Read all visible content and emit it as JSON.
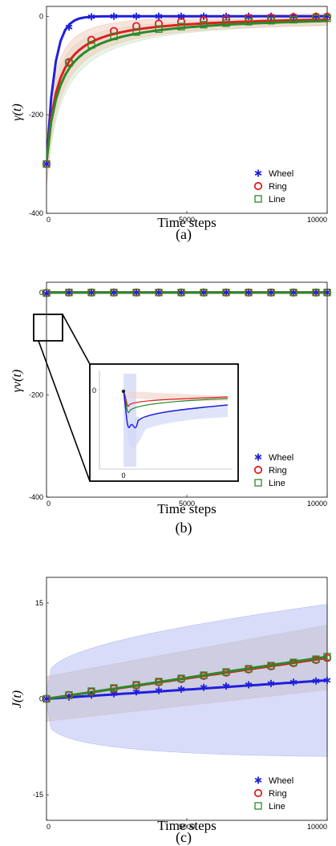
{
  "chart_data": [
    {
      "type": "line",
      "caption": "(a)",
      "ylabel": "γ(t)",
      "xlabel": "Time steps",
      "xlim": [
        0,
        10000
      ],
      "ylim": [
        -400,
        20
      ],
      "xticks": [
        0,
        5000,
        10000
      ],
      "yticks": [
        0,
        -200,
        -400
      ],
      "xtick_labels": [
        "0",
        "5000",
        "10000"
      ],
      "ytick_labels": [
        "0",
        "-200",
        "-400"
      ],
      "legend": "bottom-right",
      "series": [
        {
          "name": "Wheel",
          "marker": "star",
          "color": "#1f1fdc",
          "x": [
            0,
            800,
            1600,
            2400,
            3200,
            4000,
            4800,
            5600,
            6400,
            7200,
            8000,
            8800,
            9600,
            10000
          ],
          "values": [
            -300,
            -22,
            -1,
            0,
            0,
            0,
            0,
            0,
            0,
            0,
            0,
            0,
            0,
            0
          ]
        },
        {
          "name": "Ring",
          "marker": "circle",
          "color": "#e01e1e",
          "x": [
            0,
            800,
            1600,
            2400,
            3200,
            4000,
            4800,
            5600,
            6400,
            7200,
            8000,
            8800,
            9600,
            10000
          ],
          "values": [
            -300,
            -93,
            -48,
            -30,
            -20,
            -15,
            -11,
            -8,
            -6,
            -4,
            -3,
            -2,
            -1,
            -1
          ]
        },
        {
          "name": "Line",
          "marker": "square",
          "color": "#2a8a2a",
          "x": [
            0,
            800,
            1600,
            2400,
            3200,
            4000,
            4800,
            5600,
            6400,
            7200,
            8000,
            8800,
            9600,
            10000
          ],
          "values": [
            -300,
            -95,
            -58,
            -41,
            -32,
            -26,
            -21,
            -17,
            -14,
            -11,
            -9,
            -7,
            -5,
            -4
          ]
        }
      ]
    },
    {
      "type": "line",
      "caption": "(b)",
      "ylabel": "γv(t)",
      "xlabel": "Time steps",
      "xlim": [
        0,
        10000
      ],
      "ylim": [
        -400,
        20
      ],
      "xticks": [
        0,
        5000,
        10000
      ],
      "yticks": [
        0,
        -200,
        -400
      ],
      "xtick_labels": [
        "0",
        "5000",
        "10000"
      ],
      "ytick_labels": [
        "0",
        "-200",
        "-400"
      ],
      "legend": "bottom-right",
      "inset": {
        "zoom_of": "t ≈ 0–600",
        "tick_label_y": "0",
        "tick_label_x": "0"
      },
      "series": [
        {
          "name": "Wheel",
          "marker": "star",
          "color": "#1f1fdc",
          "x": [
            0,
            800,
            1600,
            2400,
            3200,
            4000,
            4800,
            5600,
            6400,
            7200,
            8000,
            8800,
            9600,
            10000
          ],
          "values": [
            -2,
            0,
            0,
            0,
            0,
            0,
            0,
            0,
            0,
            0,
            0,
            0,
            0,
            0
          ]
        },
        {
          "name": "Ring",
          "marker": "circle",
          "color": "#e01e1e",
          "x": [
            0,
            800,
            1600,
            2400,
            3200,
            4000,
            4800,
            5600,
            6400,
            7200,
            8000,
            8800,
            9600,
            10000
          ],
          "values": [
            -1,
            0,
            0,
            0,
            0,
            0,
            0,
            0,
            0,
            0,
            0,
            0,
            0,
            0
          ]
        },
        {
          "name": "Line",
          "marker": "square",
          "color": "#2a8a2a",
          "x": [
            0,
            800,
            1600,
            2400,
            3200,
            4000,
            4800,
            5600,
            6400,
            7200,
            8000,
            8800,
            9600,
            10000
          ],
          "values": [
            -1,
            0,
            0,
            0,
            0,
            0,
            0,
            0,
            0,
            0,
            0,
            0,
            0,
            0
          ]
        }
      ]
    },
    {
      "type": "line",
      "caption": "(c)",
      "ylabel": "J(t)",
      "xlabel": "Time steps",
      "xlim": [
        0,
        10000
      ],
      "ylim": [
        -19,
        19
      ],
      "xticks": [
        0,
        5000,
        10000
      ],
      "yticks": [
        15,
        0,
        -15
      ],
      "xtick_labels": [
        "0",
        "5000",
        "10000"
      ],
      "ytick_labels": [
        "15",
        "0",
        "-15"
      ],
      "legend": "bottom-right",
      "series": [
        {
          "name": "Wheel",
          "marker": "star",
          "color": "#1f1fdc",
          "x": [
            0,
            800,
            1600,
            2400,
            3200,
            4000,
            4800,
            5600,
            6400,
            7200,
            8000,
            8800,
            9600,
            10000
          ],
          "values": [
            0,
            0.3,
            0.6,
            0.8,
            1.1,
            1.3,
            1.5,
            1.8,
            2.0,
            2.2,
            2.4,
            2.6,
            2.8,
            2.9
          ]
        },
        {
          "name": "Ring",
          "marker": "circle",
          "color": "#e01e1e",
          "x": [
            0,
            800,
            1600,
            2400,
            3200,
            4000,
            4800,
            5600,
            6400,
            7200,
            8000,
            8800,
            9600,
            10000
          ],
          "values": [
            0,
            0.6,
            1.1,
            1.6,
            2.1,
            2.6,
            3.1,
            3.6,
            4.1,
            4.6,
            5.1,
            5.6,
            6.1,
            6.4
          ]
        },
        {
          "name": "Line",
          "marker": "square",
          "color": "#2a8a2a",
          "x": [
            0,
            800,
            1600,
            2400,
            3200,
            4000,
            4800,
            5600,
            6400,
            7200,
            8000,
            8800,
            9600,
            10000
          ],
          "values": [
            0,
            0.6,
            1.2,
            1.7,
            2.2,
            2.7,
            3.2,
            3.7,
            4.2,
            4.7,
            5.2,
            5.7,
            6.2,
            6.6
          ]
        }
      ]
    }
  ]
}
